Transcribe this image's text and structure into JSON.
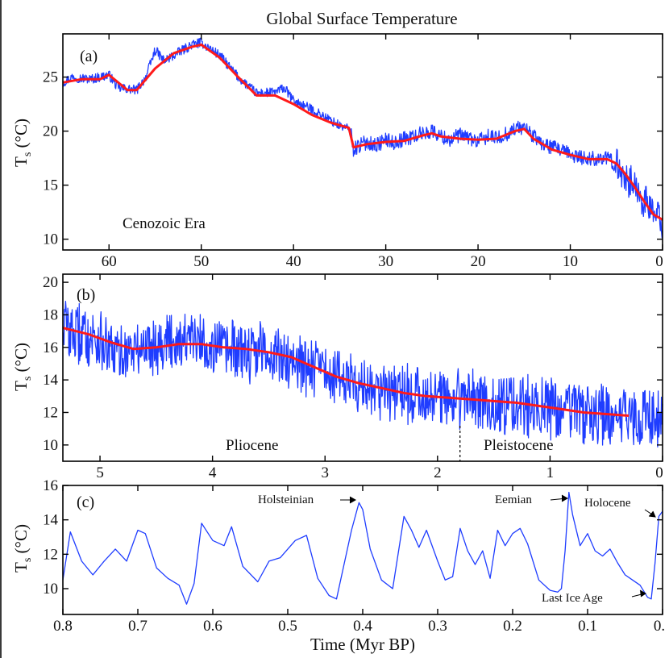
{
  "title": "Global Surface Temperature",
  "xlabel": "Time (Myr BP)",
  "colors": {
    "raw": "#1f3dff",
    "smooth": "#ff1a1a",
    "axis": "#000000"
  },
  "panels": [
    {
      "tag": "(a)",
      "ylabel": "T",
      "ylabel_sub": "s",
      "ylabel_unit": " (°C)",
      "era_label": "Cenozoic Era"
    },
    {
      "tag": "(b)",
      "ylabel": "T",
      "ylabel_sub": "s",
      "ylabel_unit": " (°C)",
      "epoch_left": "Pliocene",
      "epoch_right": "Pleistocene"
    },
    {
      "tag": "(c)",
      "ylabel": "T",
      "ylabel_sub": "s",
      "ylabel_unit": " (°C)",
      "annotations": [
        "Holsteinian",
        "Eemian",
        "Holocene",
        "Last Ice Age"
      ]
    }
  ],
  "chart_data": [
    {
      "type": "line",
      "panel": "a",
      "title": "Global Surface Temperature",
      "xlabel": "",
      "ylabel": "Ts (°C)",
      "xlim": [
        65,
        0
      ],
      "ylim": [
        9,
        29
      ],
      "xticks": [
        60,
        50,
        40,
        30,
        20,
        10,
        0
      ],
      "yticks": [
        10,
        15,
        20,
        25
      ],
      "annotation": "Cenozoic Era",
      "series": [
        {
          "role": "raw",
          "color": "#1f3dff",
          "x": [
            65,
            64,
            62,
            60,
            59,
            57,
            56,
            55,
            54,
            52,
            51,
            50,
            48,
            46,
            44,
            42,
            41,
            40,
            38,
            36,
            35,
            34,
            33.8,
            33.5,
            33,
            32,
            31,
            30,
            29,
            28,
            27,
            26,
            25,
            24,
            23,
            22,
            21,
            20,
            19,
            18,
            17,
            16,
            15,
            14,
            13,
            12,
            11,
            10,
            9,
            8,
            7,
            6,
            5,
            4,
            3,
            2,
            1,
            0
          ],
          "y": [
            24.5,
            25,
            24.8,
            25.2,
            24,
            23.8,
            25,
            27.5,
            26.5,
            27.5,
            28,
            28.2,
            27,
            25,
            23.5,
            23.6,
            24,
            22.8,
            22,
            21,
            20.5,
            20.2,
            20,
            18.3,
            18.6,
            19,
            18.7,
            19.2,
            18.9,
            19.3,
            19.5,
            19.8,
            20,
            19.5,
            19.2,
            19.6,
            19.4,
            19,
            19.5,
            19.3,
            19.7,
            20.2,
            20.4,
            19.5,
            18.8,
            18.5,
            18.2,
            17.8,
            17.6,
            17.4,
            17.5,
            17.5,
            16.8,
            15.8,
            14.8,
            13.5,
            12.5,
            11.5
          ]
        },
        {
          "role": "smooth",
          "color": "#ff1a1a",
          "x": [
            65,
            63,
            61,
            60,
            58,
            57,
            55,
            53,
            51,
            50,
            48,
            46,
            44,
            42,
            40,
            38,
            36,
            34,
            33.5,
            32,
            30,
            28,
            26,
            25,
            24,
            22,
            20,
            18,
            16,
            15,
            14,
            12,
            10,
            8,
            6,
            5,
            4,
            3,
            2,
            1,
            0
          ],
          "y": [
            24.5,
            24.8,
            24.8,
            25.2,
            23.8,
            23.8,
            25.8,
            27.2,
            27.8,
            28,
            26.8,
            25,
            23.3,
            23.3,
            22.5,
            21.5,
            20.8,
            20.3,
            18.5,
            18.8,
            19,
            19.1,
            19.6,
            19.8,
            19.5,
            19.3,
            19.2,
            19.3,
            20,
            20.2,
            19.3,
            18.3,
            17.8,
            17.4,
            17.4,
            17,
            16,
            14.8,
            13.5,
            12.3,
            11.8
          ]
        }
      ]
    },
    {
      "type": "line",
      "panel": "b",
      "xlabel": "",
      "ylabel": "Ts (°C)",
      "xlim": [
        5.33,
        0
      ],
      "ylim": [
        9,
        20.5
      ],
      "xticks": [
        5,
        4,
        3,
        2,
        1,
        0
      ],
      "yticks": [
        10,
        12,
        14,
        16,
        18,
        20
      ],
      "annotation": [
        "Pliocene",
        "Pleistocene"
      ],
      "boundary_x": 1.8,
      "series": [
        {
          "role": "raw",
          "color": "#1f3dff",
          "x": [
            5.33,
            5.2,
            5.0,
            4.9,
            4.7,
            4.5,
            4.3,
            4.1,
            3.9,
            3.7,
            3.5,
            3.3,
            3.1,
            2.9,
            2.7,
            2.5,
            2.3,
            2.1,
            1.9,
            1.7,
            1.5,
            1.3,
            1.1,
            0.9,
            0.7,
            0.5,
            0.3,
            0.1,
            0
          ],
          "y": [
            17.5,
            16.8,
            16.5,
            15.5,
            15.8,
            16.3,
            16.6,
            16.2,
            15.9,
            15.7,
            15.8,
            15.2,
            14.8,
            14.2,
            13.8,
            13.5,
            13.1,
            13,
            12.7,
            12.8,
            12.6,
            12.5,
            12.3,
            12,
            11.9,
            11.8,
            11.7,
            11.6,
            11.5
          ]
        },
        {
          "role": "smooth",
          "color": "#ff1a1a",
          "x": [
            5.33,
            5.1,
            4.9,
            4.7,
            4.5,
            4.3,
            4.1,
            3.9,
            3.7,
            3.5,
            3.3,
            3.1,
            2.9,
            2.7,
            2.5,
            2.3,
            2.1,
            1.9,
            1.7,
            1.5,
            1.3,
            1.1,
            0.9,
            0.7,
            0.5,
            0.3
          ],
          "y": [
            17.2,
            16.8,
            16.3,
            15.9,
            16,
            16.2,
            16.2,
            16,
            15.9,
            15.7,
            15.4,
            14.8,
            14.2,
            13.8,
            13.5,
            13.2,
            13,
            12.9,
            12.8,
            12.7,
            12.6,
            12.4,
            12.2,
            12,
            11.9,
            11.8
          ]
        }
      ]
    },
    {
      "type": "line",
      "panel": "c",
      "xlabel": "Time (Myr BP)",
      "ylabel": "Ts (°C)",
      "xlim": [
        0.8,
        0
      ],
      "ylim": [
        8.5,
        16
      ],
      "xticks": [
        0.8,
        0.7,
        0.6,
        0.5,
        0.4,
        0.3,
        0.2,
        0.1,
        0
      ],
      "xticklabels": [
        "0.8",
        "0.7",
        "0.6",
        "0.5",
        "0.4",
        "0.3",
        "0.2",
        "0.1",
        "0."
      ],
      "yticks": [
        10,
        12,
        14,
        16
      ],
      "annotation": [
        "Holsteinian",
        "Eemian",
        "Holocene",
        "Last Ice Age"
      ],
      "series": [
        {
          "role": "raw",
          "color": "#1f3dff",
          "x": [
            0.8,
            0.79,
            0.775,
            0.76,
            0.745,
            0.73,
            0.715,
            0.7,
            0.69,
            0.675,
            0.66,
            0.645,
            0.635,
            0.625,
            0.615,
            0.6,
            0.585,
            0.575,
            0.56,
            0.54,
            0.525,
            0.51,
            0.49,
            0.475,
            0.46,
            0.445,
            0.435,
            0.425,
            0.415,
            0.405,
            0.4,
            0.39,
            0.375,
            0.36,
            0.345,
            0.335,
            0.325,
            0.315,
            0.3,
            0.29,
            0.28,
            0.27,
            0.26,
            0.25,
            0.24,
            0.23,
            0.22,
            0.21,
            0.2,
            0.19,
            0.18,
            0.165,
            0.15,
            0.14,
            0.135,
            0.13,
            0.125,
            0.12,
            0.11,
            0.1,
            0.09,
            0.08,
            0.07,
            0.06,
            0.05,
            0.04,
            0.03,
            0.02,
            0.015,
            0.01,
            0.005,
            0
          ],
          "y": [
            10.5,
            13.3,
            11.6,
            10.8,
            11.6,
            12.3,
            11.6,
            13.4,
            13.2,
            11.2,
            10.6,
            10.2,
            9.1,
            10.3,
            13.8,
            12.8,
            12.5,
            13.6,
            11.3,
            10.4,
            11.6,
            11.8,
            12.8,
            13.1,
            10.6,
            9.6,
            9.4,
            11.4,
            13.4,
            15.0,
            14.6,
            12.3,
            10.5,
            10.0,
            14.2,
            13.4,
            12.4,
            13.4,
            11.6,
            10.5,
            10.7,
            13.5,
            12.2,
            11.4,
            12.2,
            10.6,
            13.4,
            12.5,
            13.2,
            13.5,
            12.6,
            10.5,
            9.9,
            9.8,
            10.0,
            12.2,
            15.6,
            14.3,
            12.5,
            13.2,
            12.2,
            11.9,
            12.3,
            11.5,
            10.8,
            10.5,
            10.2,
            9.5,
            9.4,
            11.5,
            14.2,
            14.5
          ]
        }
      ]
    }
  ]
}
